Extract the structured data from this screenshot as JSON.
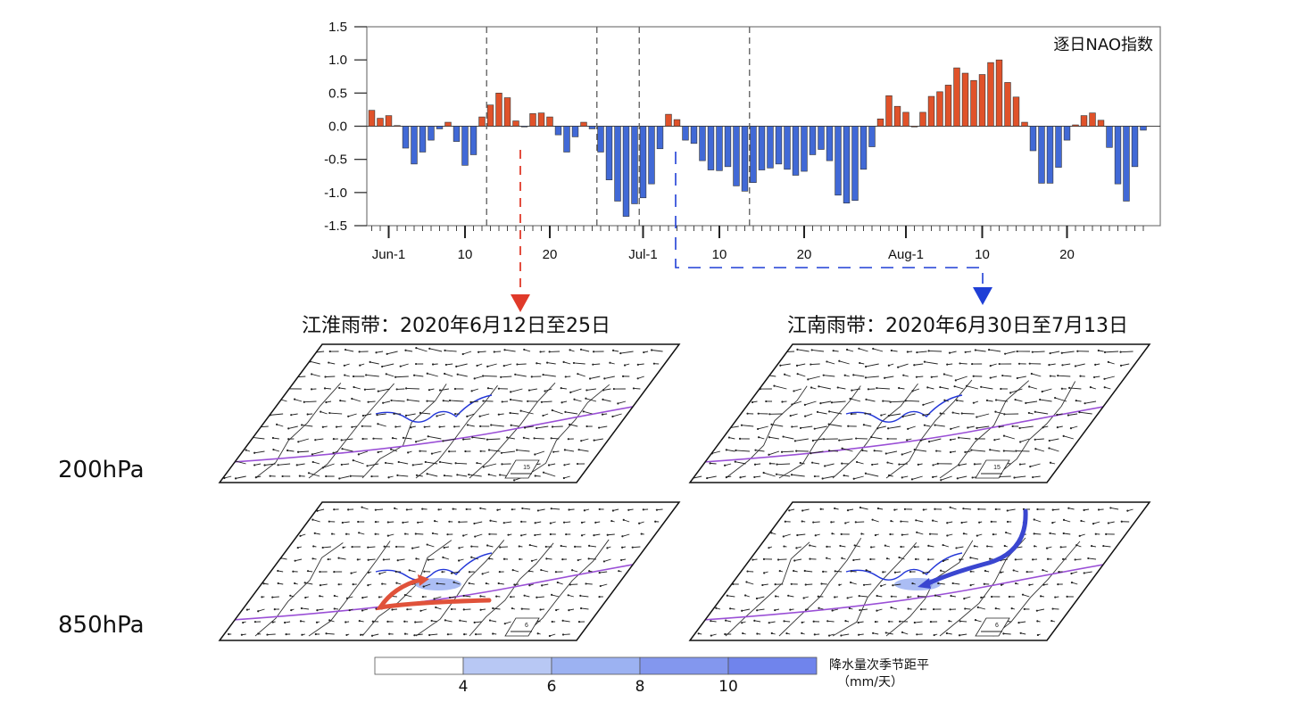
{
  "chart_data": {
    "type": "bar",
    "title": "逐日NAO指数",
    "xlabel": "",
    "ylabel": "",
    "ylim": [
      -1.5,
      1.5
    ],
    "yticks": [
      "1.5",
      "1.0",
      "0.5",
      "0.0",
      "-0.5",
      "-1.0",
      "-1.5"
    ],
    "ytick_values": [
      1.5,
      1.0,
      0.5,
      0.0,
      -0.5,
      -1.0,
      -1.5
    ],
    "xtick_labels": [
      "Jun-1",
      "10",
      "20",
      "Jul-1",
      "10",
      "20",
      "Aug-1",
      "10",
      "20"
    ],
    "xtick_day_index": [
      2,
      11,
      21,
      32,
      41,
      51,
      63,
      72,
      82
    ],
    "x_start": "May-30",
    "x_end": "Aug-31",
    "positive_color": "#e0522a",
    "negative_color": "#4169d6",
    "grid": false,
    "reference_lines_day_index": [
      14,
      27,
      32,
      45
    ],
    "values": [
      0.24,
      0.12,
      0.16,
      0.01,
      -0.33,
      -0.57,
      -0.39,
      -0.21,
      -0.04,
      0.06,
      -0.23,
      -0.59,
      -0.43,
      0.14,
      0.32,
      0.5,
      0.43,
      0.08,
      -0.01,
      0.19,
      0.2,
      0.14,
      -0.13,
      -0.39,
      -0.16,
      0.06,
      -0.04,
      -0.39,
      -0.81,
      -1.13,
      -1.36,
      -1.17,
      -1.08,
      -0.87,
      -0.34,
      0.18,
      0.1,
      -0.21,
      -0.26,
      -0.52,
      -0.66,
      -0.67,
      -0.61,
      -0.9,
      -0.98,
      -0.85,
      -0.66,
      -0.63,
      -0.57,
      -0.65,
      -0.74,
      -0.68,
      -0.43,
      -0.35,
      -0.52,
      -1.04,
      -1.16,
      -1.12,
      -0.65,
      -0.31,
      0.11,
      0.46,
      0.3,
      0.21,
      0.0,
      0.21,
      0.45,
      0.52,
      0.62,
      0.88,
      0.8,
      0.69,
      0.78,
      0.96,
      1.0,
      0.66,
      0.44,
      0.06,
      -0.37,
      -0.86,
      -0.86,
      -0.62,
      -0.21,
      0.02,
      0.16,
      0.2,
      0.09,
      -0.32,
      -0.87,
      -1.13,
      -0.61,
      -0.06
    ]
  },
  "annotations": {
    "left_arrow_color": "#e03a2a",
    "right_arrow_color": "#1f3fd6"
  },
  "panels": {
    "left_title": "江淮雨带：2020年6月12日至25日",
    "right_title": "江南雨带：2020年6月30日至7月13日",
    "level_200": "200hPa",
    "level_850": "850hPa",
    "ref_vector_200": "15",
    "ref_vector_850": "6"
  },
  "colorbar": {
    "title": "降水量次季节距平",
    "unit": "（mm/天）",
    "ticks": [
      "4",
      "6",
      "8",
      "10"
    ],
    "colors": [
      "#ffffff",
      "#b8c8f4",
      "#9cb2f2",
      "#8397ee",
      "#7084ec"
    ]
  }
}
